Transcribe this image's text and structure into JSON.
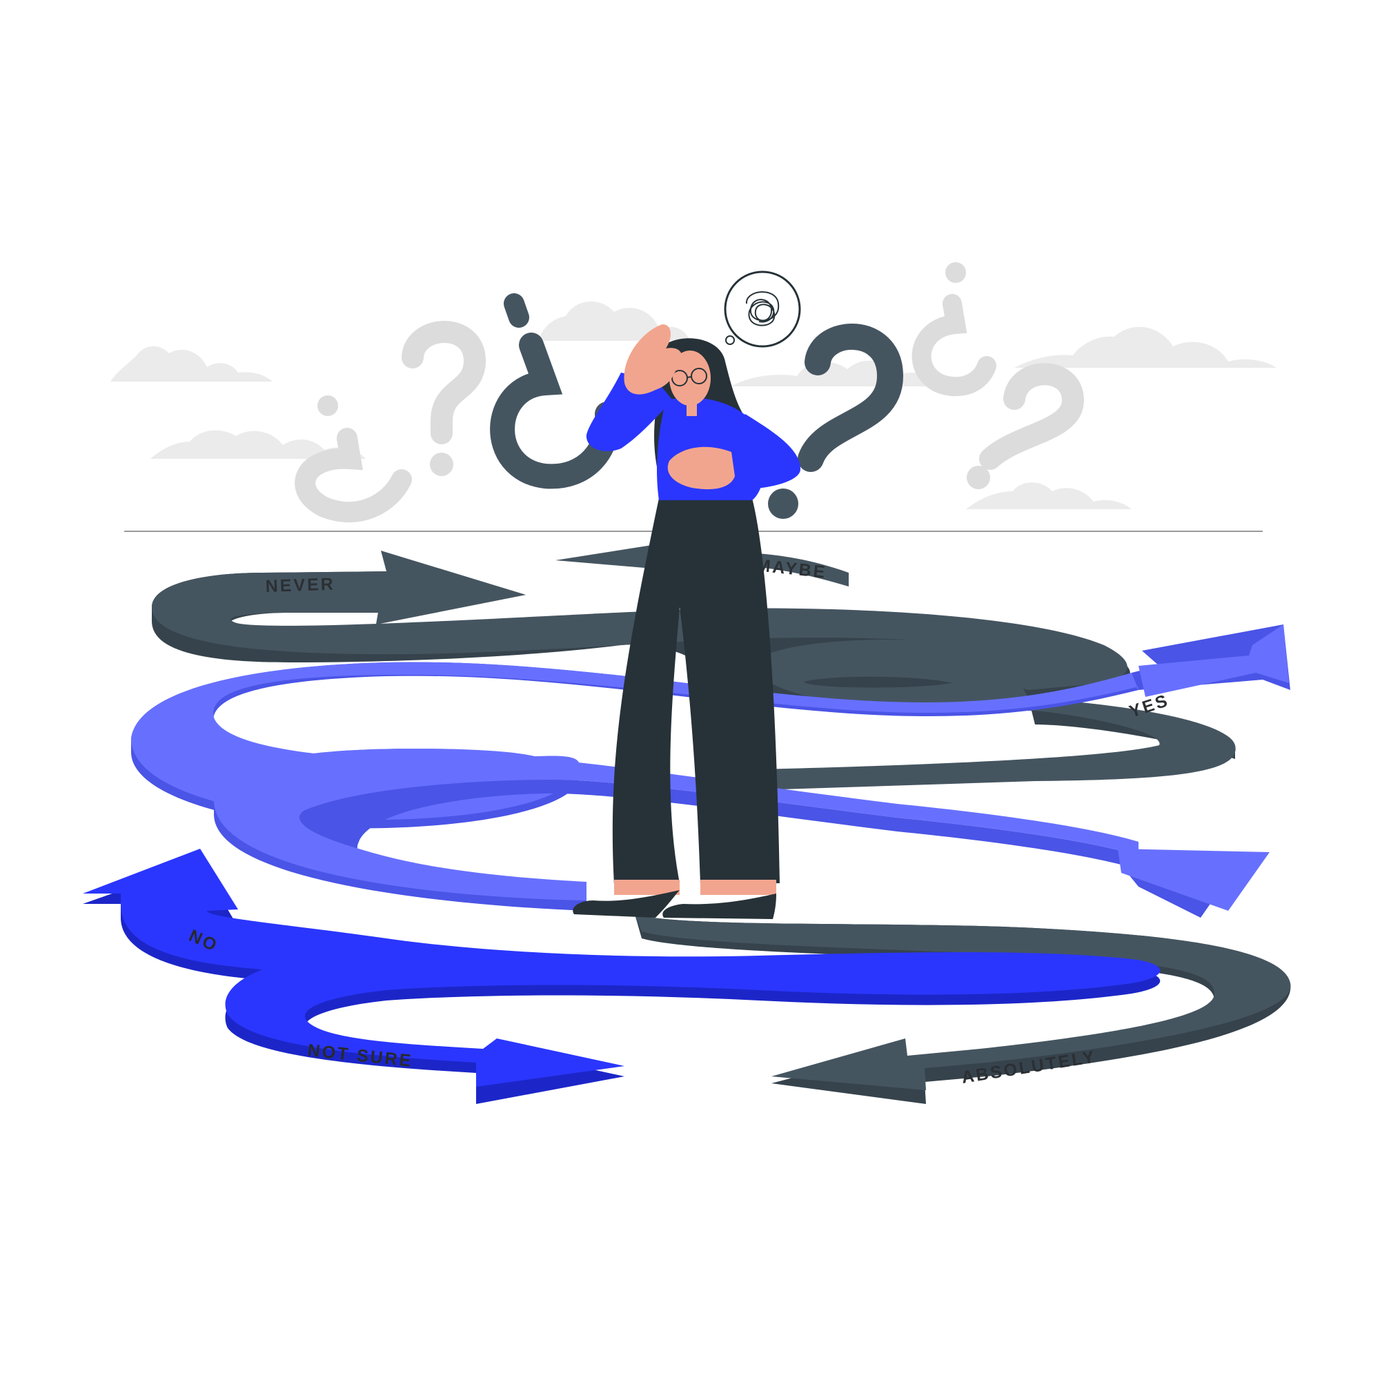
{
  "scene": {
    "colors": {
      "background": "#ffffff",
      "cloud": "#ebebeb",
      "question_light": "#dcdcdc",
      "question_dark": "#455560",
      "arrow_dark": "#455560",
      "arrow_dark_edge": "#36434c",
      "arrow_light_blue": "#6770fe",
      "arrow_light_blue_edge": "#4a54e6",
      "arrow_blue": "#2a36fd",
      "arrow_blue_edge": "#1c26c8",
      "shirt": "#2a36fd",
      "pants": "#263238",
      "skin": "#f2a58e",
      "hair": "#263238"
    },
    "icons": [
      "cloud-icon",
      "question-mark-icon",
      "inverted-question-mark-icon",
      "thought-bubble-icon",
      "scribble-icon",
      "arrow-icon"
    ]
  },
  "arrows": {
    "never": "NEVER",
    "maybe": "MAYBE",
    "yes": "YES",
    "no": "NO",
    "not_sure": "NOT SURE",
    "absolutely": "ABSOLUTELY"
  }
}
